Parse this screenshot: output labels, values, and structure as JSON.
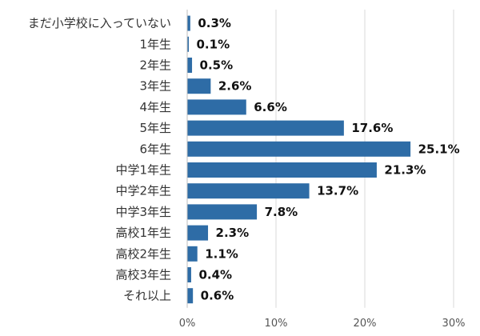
{
  "chart_data": {
    "type": "bar",
    "orientation": "horizontal",
    "categories": [
      "まだ小学校に入っていない",
      "1年生",
      "2年生",
      "3年生",
      "4年生",
      "5年生",
      "6年生",
      "中学1年生",
      "中学2年生",
      "中学3年生",
      "高校1年生",
      "高校2年生",
      "高校3年生",
      "それ以上"
    ],
    "values": [
      0.3,
      0.1,
      0.5,
      2.6,
      6.6,
      17.6,
      25.1,
      21.3,
      13.7,
      7.8,
      2.3,
      1.1,
      0.4,
      0.6
    ],
    "value_labels": [
      "0.3%",
      "0.1%",
      "0.5%",
      "2.6%",
      "6.6%",
      "17.6%",
      "25.1%",
      "21.3%",
      "13.7%",
      "7.8%",
      "2.3%",
      "1.1%",
      "0.4%",
      "0.6%"
    ],
    "x_ticks": [
      "0%",
      "10%",
      "20%",
      "30%"
    ],
    "x_tick_values": [
      0,
      10,
      20,
      30
    ],
    "xlim": [
      0,
      30
    ],
    "title": "",
    "xlabel": "",
    "ylabel": "",
    "grid": "vertical",
    "bar_color": "#2E6CA6"
  }
}
